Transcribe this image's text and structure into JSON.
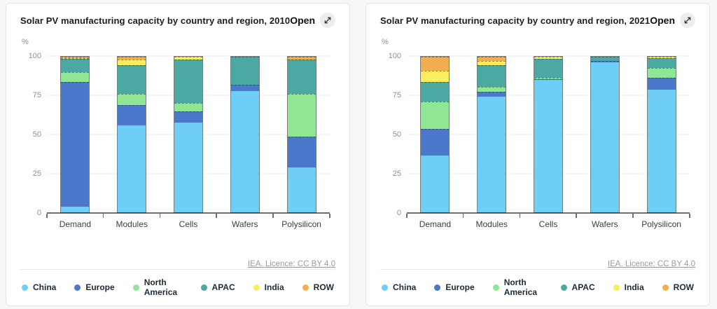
{
  "colors": {
    "China": "#6ECEF5",
    "Europe": "#4C78CB",
    "North America": "#8FE795",
    "APAC": "#4BA8A2",
    "India": "#F9EE5F",
    "ROW": "#F0AE4E"
  },
  "charts": [
    {
      "title": "Solar PV manufacturing capacity by country and region, 2010",
      "open_label": "Open",
      "ylabel": "%",
      "footer_link": "IEA. Licence: CC BY 4.0",
      "legend": [
        "China",
        "Europe",
        "North America",
        "APAC",
        "India",
        "ROW"
      ],
      "chart_data": {
        "type": "bar",
        "stacked": true,
        "grid": true,
        "ylim": [
          0,
          100
        ],
        "yticks": [
          0,
          25,
          50,
          75,
          100
        ],
        "categories": [
          "Demand",
          "Modules",
          "Cells",
          "Wafers",
          "Polysilicon"
        ],
        "series": [
          {
            "name": "China",
            "values": [
              3.5,
              56,
              57.5,
              78,
              29
            ]
          },
          {
            "name": "Europe",
            "values": [
              80.5,
              13,
              7.5,
              4,
              19.5
            ]
          },
          {
            "name": "North America",
            "values": [
              6,
              7,
              5.5,
              0,
              27.5
            ]
          },
          {
            "name": "APAC",
            "values": [
              8.5,
              18.5,
              27.5,
              18,
              22
            ]
          },
          {
            "name": "India",
            "values": [
              0.5,
              3.5,
              2,
              0,
              0
            ]
          },
          {
            "name": "ROW",
            "values": [
              1,
              2,
              0,
              0,
              2
            ]
          }
        ]
      }
    },
    {
      "title": "Solar PV manufacturing capacity by country and region, 2021",
      "open_label": "Open",
      "ylabel": "%",
      "footer_link": "IEA. Licence: CC BY 4.0",
      "legend": [
        "China",
        "Europe",
        "North America",
        "APAC",
        "India",
        "ROW"
      ],
      "chart_data": {
        "type": "bar",
        "stacked": true,
        "grid": true,
        "ylim": [
          0,
          100
        ],
        "yticks": [
          0,
          25,
          50,
          75,
          100
        ],
        "categories": [
          "Demand",
          "Modules",
          "Cells",
          "Wafers",
          "Polysilicon"
        ],
        "series": [
          {
            "name": "China",
            "values": [
              36.5,
              74.5,
              85,
              96.5,
              79
            ]
          },
          {
            "name": "Europe",
            "values": [
              17,
              3,
              0.5,
              1,
              7.5
            ]
          },
          {
            "name": "North America",
            "values": [
              17.5,
              3,
              1,
              0,
              6.5
            ]
          },
          {
            "name": "APAC",
            "values": [
              13,
              14,
              12,
              2.5,
              6
            ]
          },
          {
            "name": "India",
            "values": [
              7,
              3,
              1.5,
              0,
              1
            ]
          },
          {
            "name": "ROW",
            "values": [
              9,
              2.5,
              0,
              0,
              0
            ]
          }
        ]
      }
    }
  ]
}
